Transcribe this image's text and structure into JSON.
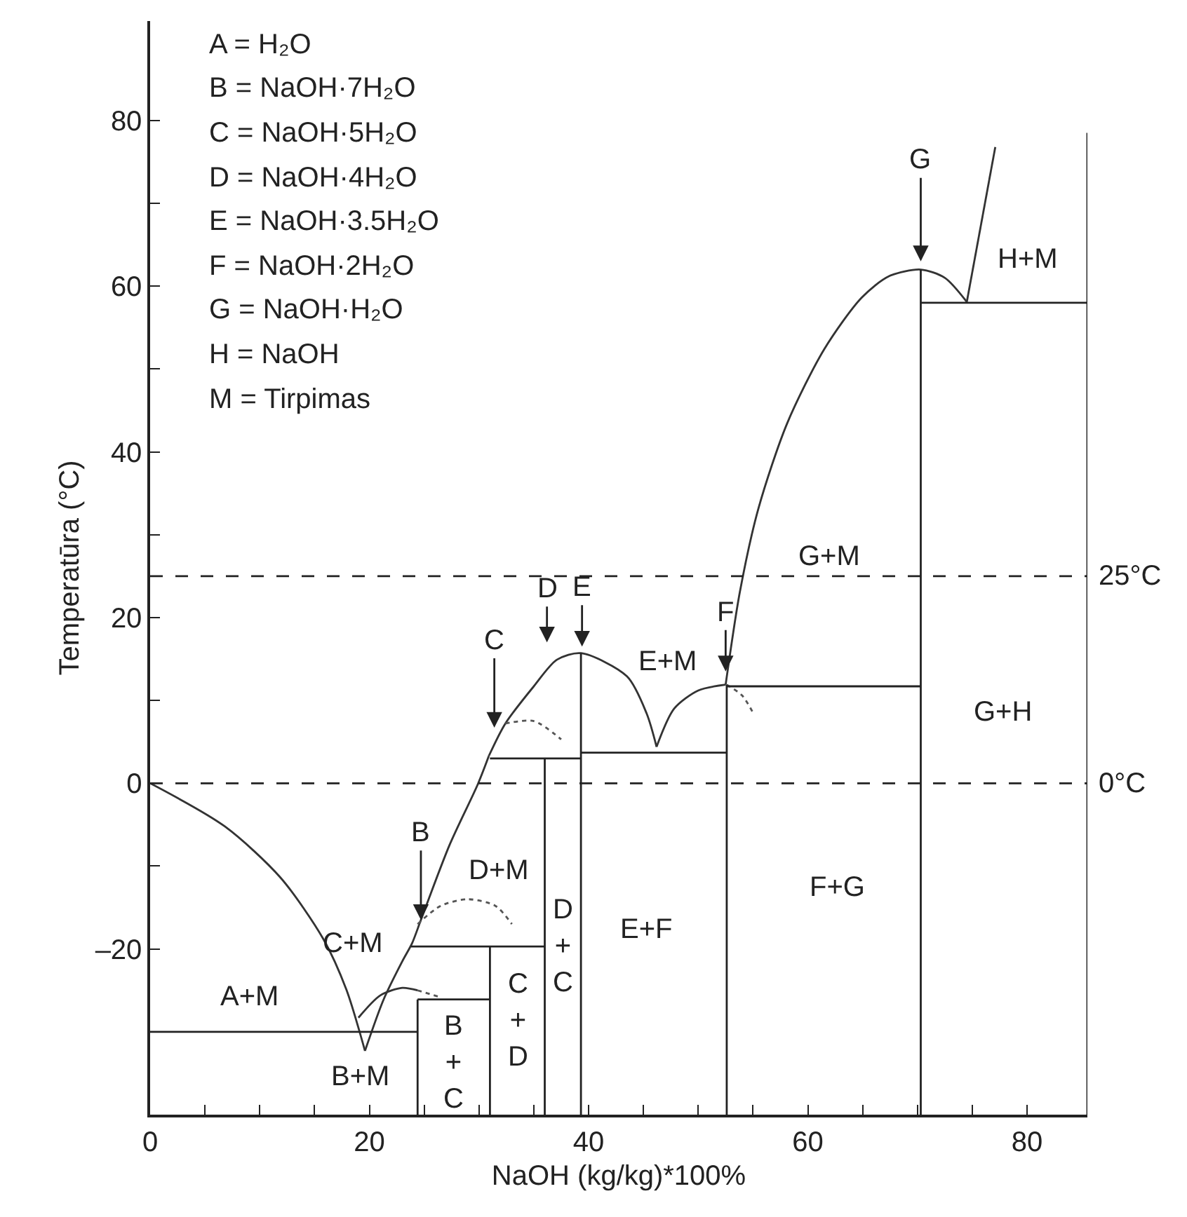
{
  "chart_data": {
    "type": "line",
    "xlabel": "NaOH (kg/kg)*100%",
    "ylabel": "Temperatūra (°C)",
    "xlim": [
      0,
      85.5
    ],
    "ylim": [
      -40,
      92
    ],
    "xticks": [
      0,
      {
        "value": 5,
        "label": null
      },
      {
        "value": 10,
        "label": null
      },
      {
        "value": 15,
        "label": null
      },
      20,
      {
        "value": 25,
        "label": null
      },
      {
        "value": 30,
        "label": null
      },
      {
        "value": 35,
        "label": null
      },
      40,
      {
        "value": 45,
        "label": null
      },
      {
        "value": 50,
        "label": null
      },
      {
        "value": 55,
        "label": null
      },
      60,
      {
        "value": 65,
        "label": null
      },
      {
        "value": 70,
        "label": null
      },
      {
        "value": 75,
        "label": null
      },
      80
    ],
    "yticks": [
      {
        "value": -30,
        "label": null
      },
      {
        "value": -20,
        "label": "–20"
      },
      {
        "value": -10,
        "label": null
      },
      0,
      {
        "value": 10,
        "label": null
      },
      20,
      {
        "value": 30,
        "label": null
      },
      40,
      {
        "value": 50,
        "label": null
      },
      60,
      {
        "value": 70,
        "label": null
      },
      80
    ],
    "grid": false,
    "legend": false,
    "marker": "none",
    "series": [
      {
        "color": "#333333",
        "line_style": "solid",
        "x": [
          0,
          6.8,
          11.9,
          15.8,
          17.9,
          19.6
        ],
        "values": [
          0,
          -5.2,
          -11.4,
          -18.8,
          -24.9,
          -32.3
        ]
      },
      {
        "color": "#333333",
        "line_style": "solid",
        "x": [
          19.6,
          21.3,
          23.0,
          23.9,
          24.7,
          27.3,
          29.9,
          30.9
        ],
        "values": [
          -32.3,
          -26.1,
          -21.5,
          -19.3,
          -16.5,
          -7.5,
          -0.1,
          3.3
        ]
      },
      {
        "color": "#333333",
        "line_style": "solid",
        "x": [
          30.9,
          32.4,
          35.0,
          37.1,
          39.3,
          43.5,
          45.3,
          46.2
        ],
        "values": [
          3.3,
          7.2,
          11.7,
          14.9,
          15.7,
          12.9,
          8.4,
          4.4
        ]
      },
      {
        "color": "#333333",
        "line_style": "solid",
        "x": [
          46.2,
          47.8,
          50.0,
          52.5
        ],
        "values": [
          4.4,
          9.0,
          11.2,
          11.9
        ]
      },
      {
        "color": "#333333",
        "line_style": "solid",
        "x": [
          52.5,
          53.8,
          55.5,
          58.1,
          61.5,
          64.9,
          67.4,
          70.3,
          72.5,
          74.5
        ],
        "values": [
          11.9,
          23.1,
          33.2,
          43.4,
          52.4,
          58.6,
          61.2,
          62.0,
          61.0,
          58.1
        ]
      },
      {
        "color": "#333333",
        "line_style": "solid",
        "x": [
          74.5,
          77.1
        ],
        "values": [
          58.1,
          76.8
        ]
      },
      {
        "color": "#333333",
        "line_style": "solid",
        "x": [
          19.0,
          21.0,
          23.0,
          24.4
        ],
        "values": [
          -28.3,
          -25.6,
          -24.7,
          -25.0
        ]
      },
      {
        "color": "#555555",
        "line_style": "dotted",
        "x": [
          24.4,
          26.4
        ],
        "values": [
          -25.0,
          -25.8
        ]
      },
      {
        "color": "#555555",
        "line_style": "dotted",
        "x": [
          24.4,
          26.5,
          29.0,
          31.5,
          33.0
        ],
        "values": [
          -17.0,
          -14.8,
          -14.0,
          -14.8,
          -17.0
        ]
      },
      {
        "color": "#555555",
        "line_style": "dotted",
        "x": [
          32.4,
          35.0,
          37.5
        ],
        "values": [
          7.2,
          7.5,
          5.3
        ]
      },
      {
        "color": "#555555",
        "line_style": "dotted",
        "x": [
          52.6,
          54.0,
          55.0
        ],
        "values": [
          11.9,
          10.6,
          8.5
        ]
      },
      {
        "color": "#222222",
        "line_style": "solid",
        "x": [
          0,
          24.4
        ],
        "values": [
          -30,
          -30
        ]
      },
      {
        "color": "#222222",
        "line_style": "solid",
        "x": [
          24.4,
          24.4
        ],
        "values": [
          -26.1,
          -40
        ]
      },
      {
        "color": "#222222",
        "line_style": "solid",
        "x": [
          24.4,
          31.0
        ],
        "values": [
          -26.1,
          -26.1
        ]
      },
      {
        "color": "#222222",
        "line_style": "solid",
        "x": [
          23.8,
          36.0
        ],
        "values": [
          -19.7,
          -19.7
        ]
      },
      {
        "color": "#222222",
        "line_style": "solid",
        "x": [
          31.0,
          31.0
        ],
        "values": [
          -19.7,
          -40
        ]
      },
      {
        "color": "#222222",
        "line_style": "solid",
        "x": [
          31.0,
          39.3
        ],
        "values": [
          3.0,
          3.0
        ]
      },
      {
        "color": "#222222",
        "line_style": "solid",
        "x": [
          36.0,
          36.0
        ],
        "values": [
          3.0,
          -40
        ]
      },
      {
        "color": "#222222",
        "line_style": "solid",
        "x": [
          39.3,
          39.3
        ],
        "values": [
          15.7,
          -40
        ]
      },
      {
        "color": "#222222",
        "line_style": "solid",
        "x": [
          39.3,
          52.6
        ],
        "values": [
          3.7,
          3.7
        ]
      },
      {
        "color": "#222222",
        "line_style": "solid",
        "x": [
          52.6,
          52.6
        ],
        "values": [
          11.9,
          -40
        ]
      },
      {
        "color": "#222222",
        "line_style": "solid",
        "x": [
          52.6,
          70.3
        ],
        "values": [
          11.7,
          11.7
        ]
      },
      {
        "color": "#222222",
        "line_style": "solid",
        "x": [
          70.3,
          70.3
        ],
        "values": [
          62.0,
          -40
        ]
      },
      {
        "color": "#222222",
        "line_style": "solid",
        "x": [
          70.3,
          85.5
        ],
        "values": [
          58.0,
          58.0
        ]
      },
      {
        "color": "#222222",
        "line_style": "solid",
        "x": [
          85.5,
          85.5
        ],
        "values": [
          78.5,
          -40
        ]
      }
    ],
    "ref_lines": [
      {
        "axis": "y",
        "value": 25,
        "label": "25°C",
        "color": "#222222",
        "line_style": "dashed"
      },
      {
        "axis": "y",
        "value": 0,
        "label": "0°C",
        "color": "#222222",
        "line_style": "dashed"
      }
    ],
    "annotations": [
      "A = H₂O",
      "B = NaOH·7H₂O",
      "C = NaOH·5H₂O",
      "D = NaOH·4H₂O",
      "E = NaOH·3.5H₂O",
      "F = NaOH·2H₂O",
      "G = NaOH·H₂O",
      "H = NaOH",
      "M = Tirpimas",
      {
        "text": "B",
        "x": 24.7,
        "y": -16.5
      },
      "C",
      "D",
      "E",
      {
        "text": "F",
        "x": 52.5,
        "y": 13.5
      },
      "G",
      "A+M",
      "C+M",
      "D+M",
      "B+M",
      "B\n+\nC",
      "C\n+\nD",
      "D\n+\nC",
      "E+F",
      "F+G",
      "G+H",
      "G+M",
      "E+M",
      "H+M"
    ]
  }
}
